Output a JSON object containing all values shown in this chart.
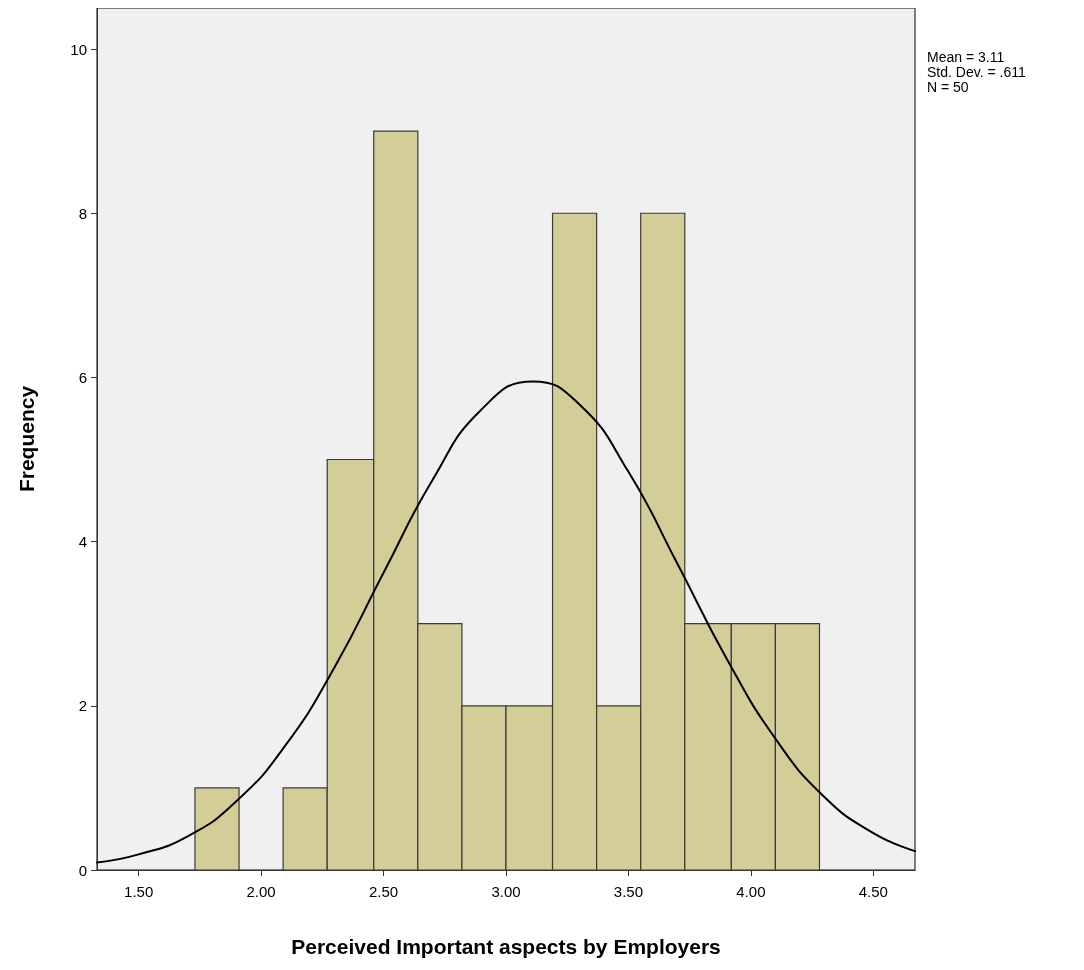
{
  "chart_data": {
    "type": "histogram",
    "xlabel": "Perceived Important aspects by Employers",
    "ylabel": "Frequency",
    "annotations": [
      "Mean = 3.11",
      "Std. Dev. = .611",
      "N = 50"
    ],
    "bins": [
      1.73,
      1.91,
      2.09,
      2.27,
      2.46,
      2.64,
      2.82,
      3.0,
      3.19,
      3.37,
      3.55,
      3.73,
      3.92,
      4.1,
      4.28
    ],
    "values": [
      1,
      0,
      1,
      5,
      9,
      3,
      2,
      2,
      8,
      2,
      8,
      3,
      3,
      3
    ],
    "color": "#d3ce97",
    "series": [
      {
        "type": "line",
        "color": "#000000",
        "x": [
          1.33,
          1.5,
          1.7,
          1.9,
          2.1,
          2.3,
          2.5,
          2.7,
          2.9,
          3.11,
          3.3,
          3.5,
          3.7,
          3.9,
          4.1,
          4.3,
          4.5,
          4.67
        ],
        "values": [
          0.09,
          0.19,
          0.41,
          0.84,
          1.52,
          2.47,
          3.62,
          4.75,
          5.61,
          5.95,
          5.67,
          4.85,
          3.73,
          2.58,
          1.6,
          0.89,
          0.45,
          0.23
        ]
      }
    ],
    "xlim": [
      1.33,
      4.67
    ],
    "xticks": [
      {
        "value": 1.5,
        "label": "1.50"
      },
      {
        "value": 2.0,
        "label": "2.00"
      },
      {
        "value": 2.5,
        "label": "2.50"
      },
      {
        "value": 3.0,
        "label": "3.00"
      },
      {
        "value": 3.5,
        "label": "3.50"
      },
      {
        "value": 4.0,
        "label": "4.00"
      },
      {
        "value": 4.5,
        "label": "4.50"
      }
    ],
    "ylim": [
      0,
      10.5
    ],
    "yticks": [
      0,
      2,
      4,
      6,
      8,
      10
    ],
    "grid": false,
    "marker": "none",
    "line_style": "solid"
  }
}
